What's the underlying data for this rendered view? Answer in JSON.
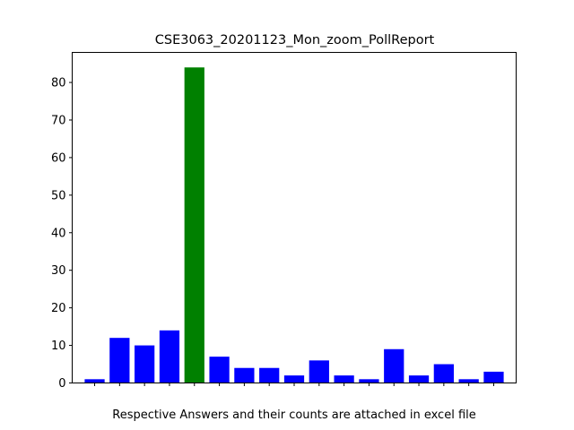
{
  "chart_data": {
    "type": "bar",
    "title": "CSE3063_20201123_Mon_zoom_PollReport",
    "xlabel": "Respective Answers and their counts are attached in excel file",
    "ylabel": "",
    "ylim": [
      0,
      88
    ],
    "yticks": [
      0,
      10,
      20,
      30,
      40,
      50,
      60,
      70,
      80
    ],
    "grid": false,
    "legend": "none",
    "categories": [
      "",
      "",
      "",
      "",
      "",
      "",
      "",
      "",
      "",
      "",
      "",
      "",
      "",
      "",
      "",
      "",
      ""
    ],
    "values": [
      1,
      12,
      10,
      14,
      84,
      7,
      4,
      4,
      2,
      6,
      2,
      1,
      9,
      2,
      5,
      1,
      3
    ],
    "colors": [
      "#0000ff",
      "#0000ff",
      "#0000ff",
      "#0000ff",
      "#008000",
      "#0000ff",
      "#0000ff",
      "#0000ff",
      "#0000ff",
      "#0000ff",
      "#0000ff",
      "#0000ff",
      "#0000ff",
      "#0000ff",
      "#0000ff",
      "#0000ff",
      "#0000ff"
    ],
    "highlight_color": "#008000",
    "bar_color": "#0000ff"
  }
}
